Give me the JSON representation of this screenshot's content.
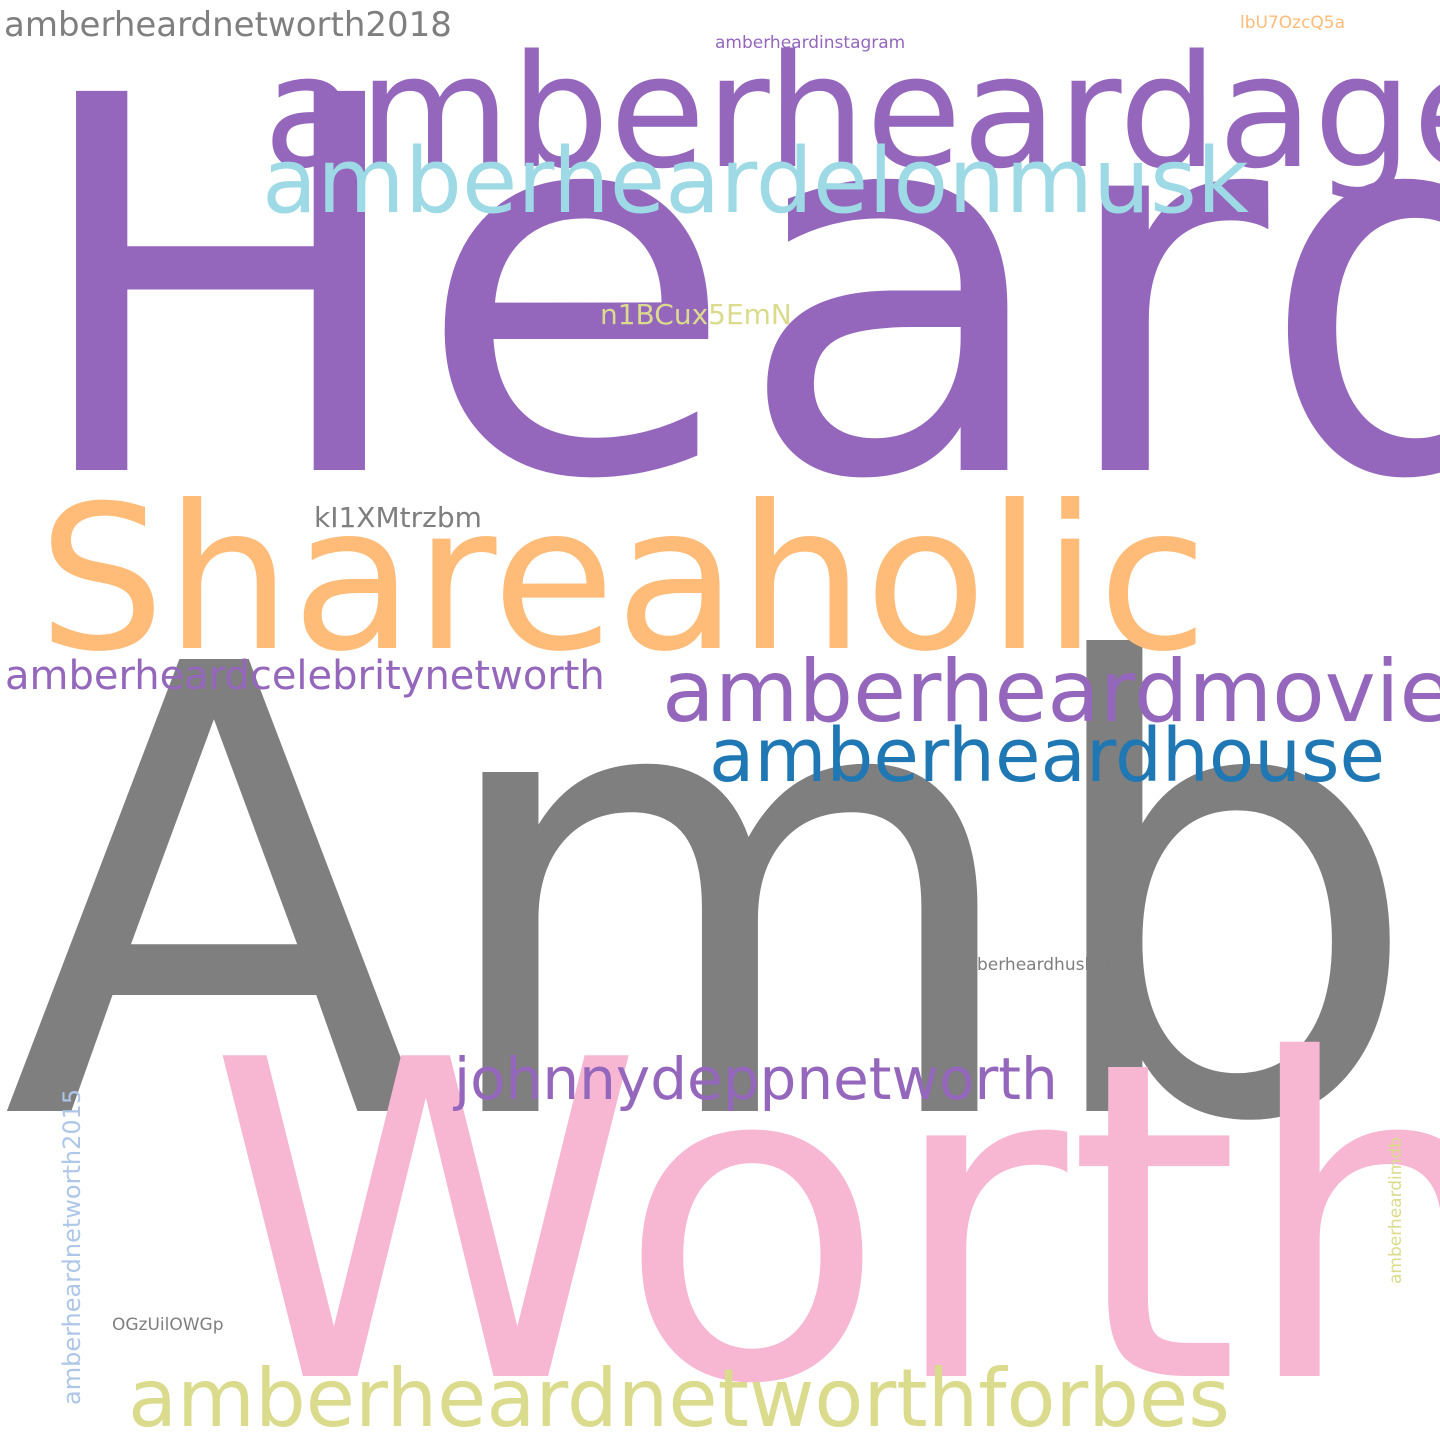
{
  "words": [
    {
      "text": "Heard",
      "color": "#9467bd",
      "weight": 1.0
    },
    {
      "text": "Amber",
      "color": "#7f7f7f",
      "weight": 0.98
    },
    {
      "text": "Worth",
      "color": "#f7b6d2",
      "weight": 0.92
    },
    {
      "text": "Shareaholic",
      "color": "#ffbb78",
      "weight": 0.46
    },
    {
      "text": "amberheardage",
      "color": "#9467bd",
      "weight": 0.37
    },
    {
      "text": "amberheardelonmusk",
      "color": "#9edae5",
      "weight": 0.25
    },
    {
      "text": "amberheardmovies",
      "color": "#9467bd",
      "weight": 0.21
    },
    {
      "text": "amberheardnetworthforbes",
      "color": "#dbdb8d",
      "weight": 0.19
    },
    {
      "text": "amberheardhouse",
      "color": "#1f77b4",
      "weight": 0.18
    },
    {
      "text": "johnnydeppnetworth",
      "color": "#9467bd",
      "weight": 0.14
    },
    {
      "text": "amberheardcelebritynetworth",
      "color": "#9467bd",
      "weight": 0.1
    },
    {
      "text": "amberheardnetworth2018",
      "color": "#7f7f7f",
      "weight": 0.09
    },
    {
      "text": "n1BCux5EmN",
      "color": "#dbdb8d",
      "weight": 0.07
    },
    {
      "text": "kI1XMtrzbm",
      "color": "#7f7f7f",
      "weight": 0.07
    },
    {
      "text": "amberheardnetworth2015",
      "color": "#aec7e8",
      "weight": 0.06,
      "orientation": "vertical"
    },
    {
      "text": "amberheardinstagram",
      "color": "#9467bd",
      "weight": 0.04
    },
    {
      "text": "lbU7OzcQ5a",
      "color": "#ffbb78",
      "weight": 0.04
    },
    {
      "text": "amberheardhusband",
      "color": "#7f7f7f",
      "weight": 0.04
    },
    {
      "text": "amberheardimdb",
      "color": "#dbdb8d",
      "weight": 0.04,
      "orientation": "vertical"
    },
    {
      "text": "OGzUilOWGp",
      "color": "#7f7f7f",
      "weight": 0.04
    }
  ]
}
